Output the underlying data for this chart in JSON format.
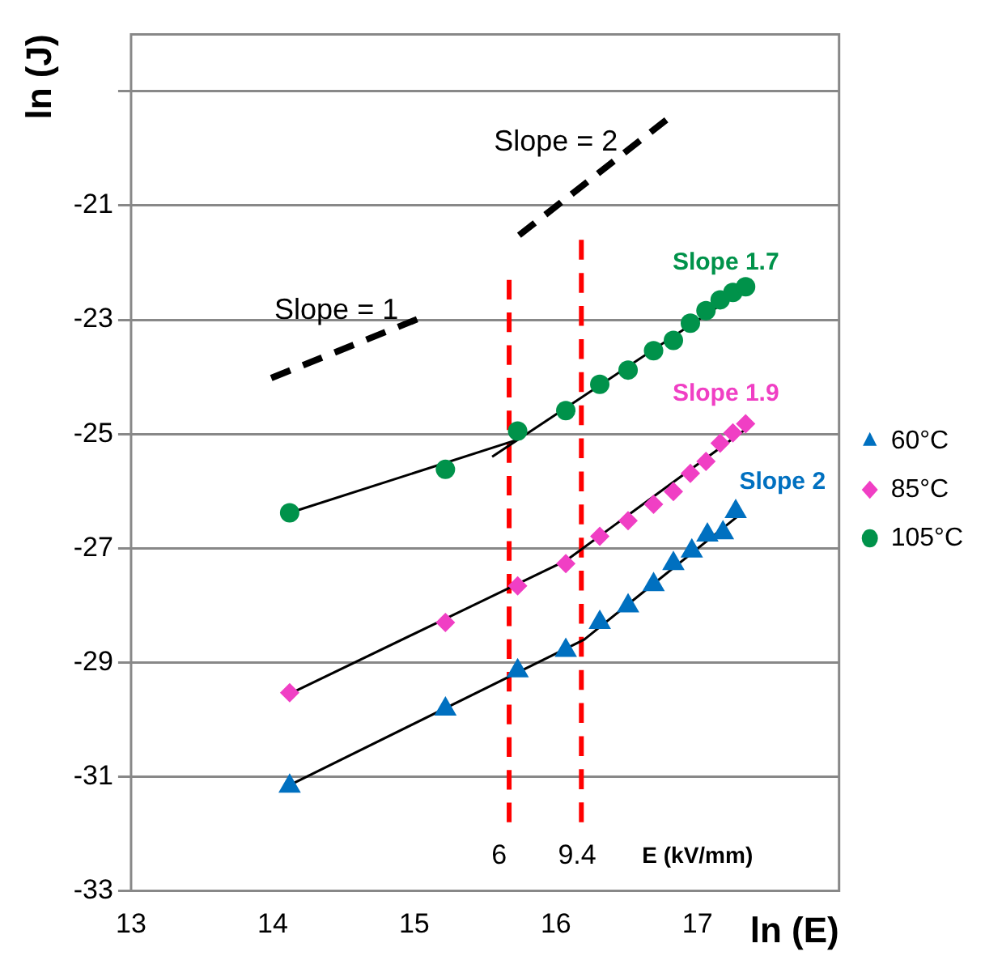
{
  "chart_data": {
    "type": "scatter",
    "xlabel": "ln (E)",
    "ylabel": "ln (J)",
    "xlim": [
      13,
      18
    ],
    "xticks": [
      13,
      14,
      15,
      16,
      17
    ],
    "ylim": [
      -33,
      -18
    ],
    "yticks": [
      -33,
      -31,
      -29,
      -27,
      -25,
      -23,
      -21,
      {
        "value": -19,
        "label": null
      }
    ],
    "grid": "y",
    "legend": "right",
    "series": [
      {
        "name": "60°C",
        "color": "#0070c0",
        "marker": "triangle",
        "x": [
          14.12,
          15.22,
          15.73,
          16.07,
          16.31,
          16.51,
          16.69,
          16.83,
          16.96,
          17.07,
          17.18,
          17.27
        ],
        "values": [
          -31.17,
          -29.82,
          -29.15,
          -28.79,
          -28.3,
          -28.01,
          -27.64,
          -27.27,
          -27.05,
          -26.77,
          -26.73,
          -26.36
        ]
      },
      {
        "name": "85°C",
        "color": "#f03fc4",
        "marker": "diamond",
        "x": [
          14.12,
          15.22,
          15.73,
          16.07,
          16.31,
          16.51,
          16.69,
          16.83,
          16.95,
          17.06,
          17.16,
          17.25,
          17.34
        ],
        "values": [
          -29.53,
          -28.3,
          -27.66,
          -27.27,
          -26.79,
          -26.52,
          -26.23,
          -26.01,
          -25.69,
          -25.48,
          -25.16,
          -24.98,
          -24.82
        ]
      },
      {
        "name": "105°C",
        "color": "#00924a",
        "marker": "circle",
        "x": [
          14.12,
          15.22,
          15.73,
          16.07,
          16.31,
          16.51,
          16.69,
          16.83,
          16.95,
          17.06,
          17.16,
          17.25,
          17.34
        ],
        "values": [
          -26.38,
          -25.62,
          -24.95,
          -24.59,
          -24.13,
          -23.88,
          -23.54,
          -23.36,
          -23.06,
          -22.84,
          -22.65,
          -22.52,
          -22.42
        ]
      },
      {
        "type": "line",
        "color": "#000000",
        "marker": "none",
        "line_style": "solid",
        "x": [
          14.12,
          15.73
        ],
        "values": [
          -26.38,
          -25.1
        ]
      },
      {
        "type": "line",
        "color": "#000000",
        "marker": "none",
        "line_style": "solid",
        "x": [
          15.55,
          17.34
        ],
        "values": [
          -25.4,
          -22.45
        ]
      },
      {
        "type": "line",
        "color": "#000000",
        "marker": "none",
        "line_style": "solid",
        "x": [
          14.12,
          16.07,
          17.35
        ],
        "values": [
          -29.55,
          -27.22,
          -24.9
        ]
      },
      {
        "type": "line",
        "color": "#000000",
        "marker": "none",
        "line_style": "solid",
        "x": [
          14.12,
          16.2,
          17.28
        ],
        "values": [
          -31.15,
          -28.6,
          -26.45
        ]
      },
      {
        "type": "line",
        "color": "#000000",
        "marker": "none",
        "line_style": "dashed",
        "x": [
          13.99,
          15.02
        ],
        "values": [
          -24.02,
          -22.99
        ]
      },
      {
        "type": "line",
        "color": "#000000",
        "marker": "none",
        "line_style": "dashed",
        "x": [
          15.74,
          16.78
        ],
        "values": [
          -21.52,
          -19.5
        ]
      },
      {
        "type": "line",
        "color": "#ff0000",
        "marker": "none",
        "line_style": "dashed",
        "x": [
          15.67,
          15.67
        ],
        "values": [
          -22.3,
          -31.8
        ]
      },
      {
        "type": "line",
        "color": "#ff0000",
        "marker": "none",
        "line_style": "dashed",
        "x": [
          16.18,
          16.18
        ],
        "values": [
          -21.6,
          -31.8
        ]
      }
    ],
    "annotations": [
      "Slope = 1",
      "Slope = 2",
      "Slope 1.7",
      "Slope 1.9",
      "Slope 2",
      "6",
      "9.4",
      "E (kV/mm)"
    ]
  }
}
